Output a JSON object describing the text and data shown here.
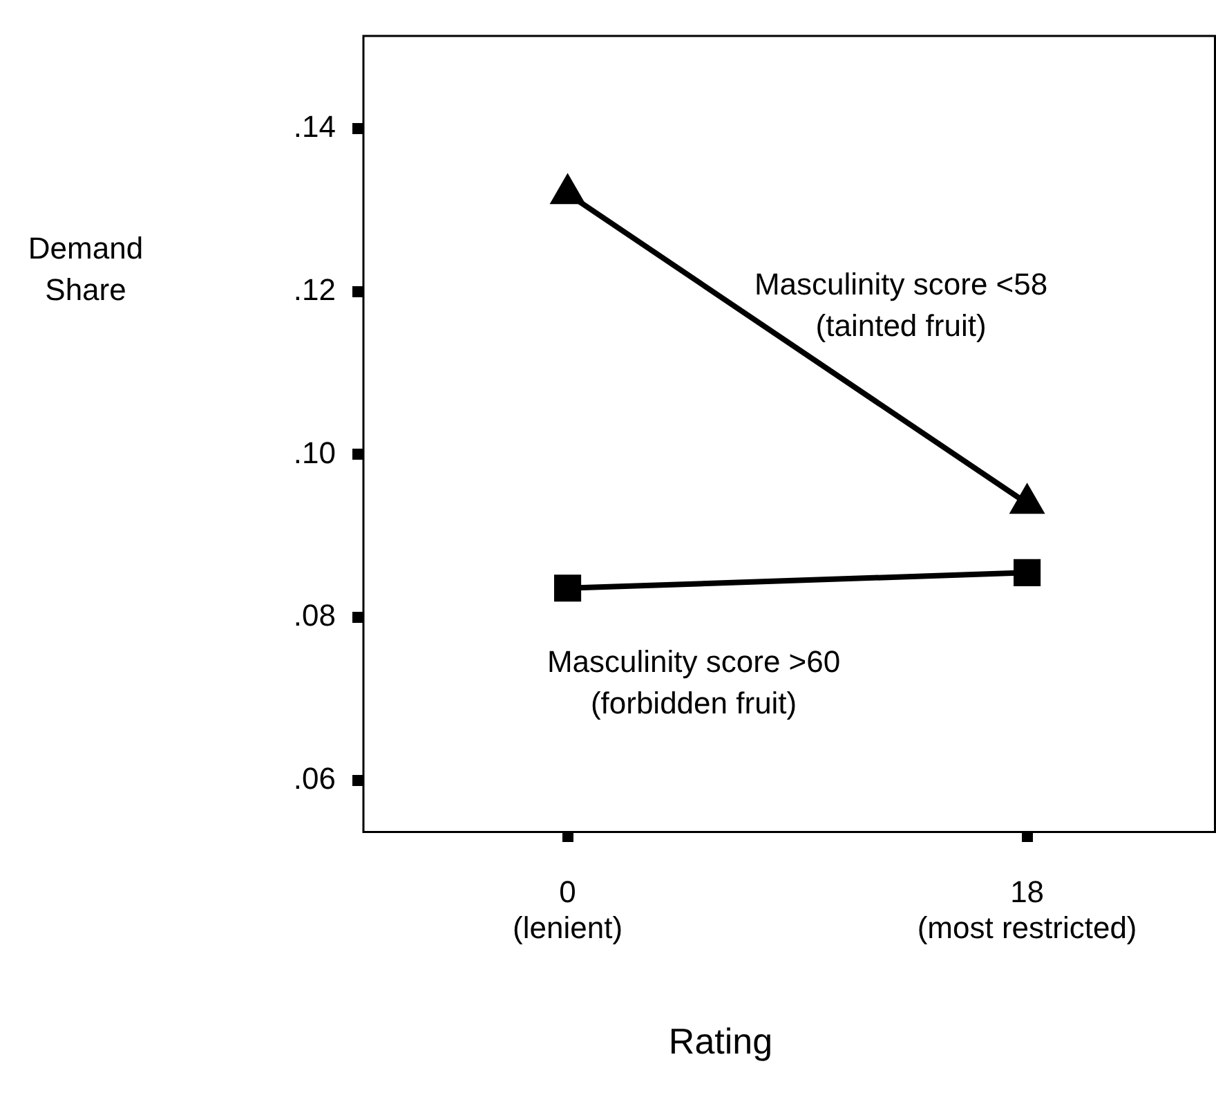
{
  "chart_data": {
    "type": "line",
    "xlabel": "Rating",
    "ylabel": "Demand\nShare",
    "xlim": [
      -8,
      25.4
    ],
    "xticks": [
      {
        "value": 0,
        "label": "0\n(lenient)"
      },
      {
        "value": 18,
        "label": "18\n(most restricted)"
      }
    ],
    "ylim": [
      0.0538,
      0.1515
    ],
    "yticks": [
      {
        "value": 0.06,
        "label": ".06"
      },
      {
        "value": 0.08,
        "label": ".08"
      },
      {
        "value": 0.1,
        "label": ".10"
      },
      {
        "value": 0.12,
        "label": ".12"
      },
      {
        "value": 0.14,
        "label": ".14"
      }
    ],
    "x": [
      0,
      18
    ],
    "series": [
      {
        "name": "Masculinity score <58\n(tainted fruit)",
        "color": "#000000",
        "marker": "triangle",
        "values": [
          0.132,
          0.094
        ]
      },
      {
        "name": "Masculinity score >60\n(forbidden fruit)",
        "color": "#000000",
        "marker": "square",
        "values": [
          0.0836,
          0.0855
        ]
      }
    ],
    "grid": false,
    "legend": false,
    "line_style": "solid"
  }
}
